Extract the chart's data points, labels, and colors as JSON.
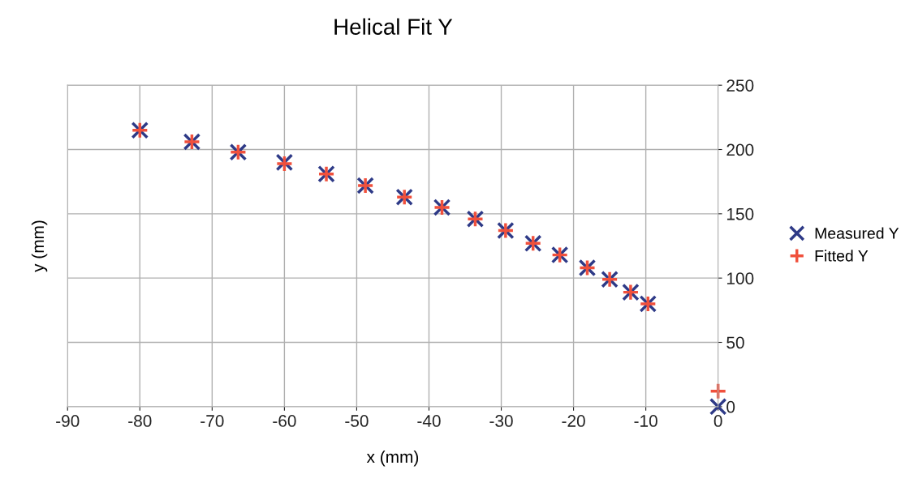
{
  "chart_data": {
    "type": "scatter",
    "title": "Helical Fit Y",
    "xlabel": "x (mm)",
    "ylabel": "y (mm)",
    "x": [
      -80,
      -72.8,
      -66.4,
      -60,
      -54.2,
      -48.8,
      -43.4,
      -38.2,
      -33.6,
      -29.4,
      -25.6,
      -21.9,
      -18.1,
      -15,
      -12.1,
      -9.7,
      0
    ],
    "series": [
      {
        "name": "Measured Y",
        "color": "#2e3a87",
        "marker": "cross",
        "values": [
          215,
          206,
          198,
          190,
          181,
          172,
          163,
          155,
          146,
          137,
          127,
          118,
          108,
          99,
          89,
          80,
          0
        ]
      },
      {
        "name": "Fitted Y",
        "color": "#f0503c",
        "marker": "plus",
        "values": [
          215,
          206,
          198,
          189,
          181,
          172,
          163,
          155,
          146,
          137,
          127,
          118,
          108,
          99,
          89,
          80,
          12
        ]
      }
    ],
    "xlim": [
      -90,
      0
    ],
    "xticks": [
      -90,
      -80,
      -70,
      -60,
      -50,
      -40,
      -30,
      -20,
      -10,
      0
    ],
    "ylim": [
      0,
      250
    ],
    "yticks": [
      0,
      50,
      100,
      150,
      200,
      250
    ],
    "grid": true,
    "legend": "right"
  }
}
